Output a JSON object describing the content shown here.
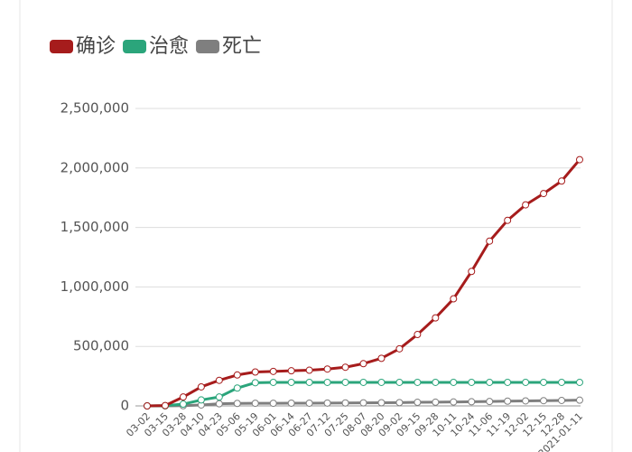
{
  "chart_data": {
    "type": "line",
    "categories": [
      "03-02",
      "03-15",
      "03-28",
      "04-10",
      "04-23",
      "05-06",
      "05-19",
      "06-01",
      "06-14",
      "06-27",
      "07-12",
      "07-25",
      "08-07",
      "08-20",
      "09-02",
      "09-15",
      "09-28",
      "10-11",
      "10-24",
      "11-06",
      "11-19",
      "12-02",
      "12-15",
      "12-28",
      "2021-01-11"
    ],
    "series": [
      {
        "name": "确诊",
        "color": "#a61c1c",
        "values": [
          100,
          3000,
          75000,
          160000,
          215000,
          260000,
          285000,
          290000,
          295000,
          300000,
          310000,
          325000,
          355000,
          400000,
          480000,
          600000,
          740000,
          900000,
          1130000,
          1385000,
          1560000,
          1690000,
          1785000,
          1890000,
          2070000
        ]
      },
      {
        "name": "治愈",
        "color": "#2ba57b",
        "values": [
          0,
          2000,
          15000,
          50000,
          75000,
          150000,
          195000,
          198000,
          198000,
          198000,
          198000,
          198000,
          198000,
          198000,
          198000,
          198000,
          198000,
          198000,
          198000,
          198000,
          198000,
          198000,
          198000,
          198000,
          198000
        ]
      },
      {
        "name": "死亡",
        "color": "#7f7f7f",
        "values": [
          0,
          100,
          2000,
          8000,
          18000,
          21000,
          22000,
          22000,
          23000,
          23000,
          24000,
          25000,
          26000,
          27000,
          28000,
          30000,
          31000,
          33000,
          35000,
          37000,
          40000,
          42000,
          44000,
          46000,
          48000
        ]
      }
    ],
    "ylim": [
      0,
      2500000
    ],
    "yticks": [
      0,
      {
        "value": 500000,
        "label": "500,000"
      },
      {
        "value": 1000000,
        "label": "1,000,000"
      },
      {
        "value": 1500000,
        "label": "1,500,000"
      },
      {
        "value": 2000000,
        "label": "2,000,000"
      },
      {
        "value": 2500000,
        "label": "2,500,000"
      }
    ],
    "grid": true
  }
}
